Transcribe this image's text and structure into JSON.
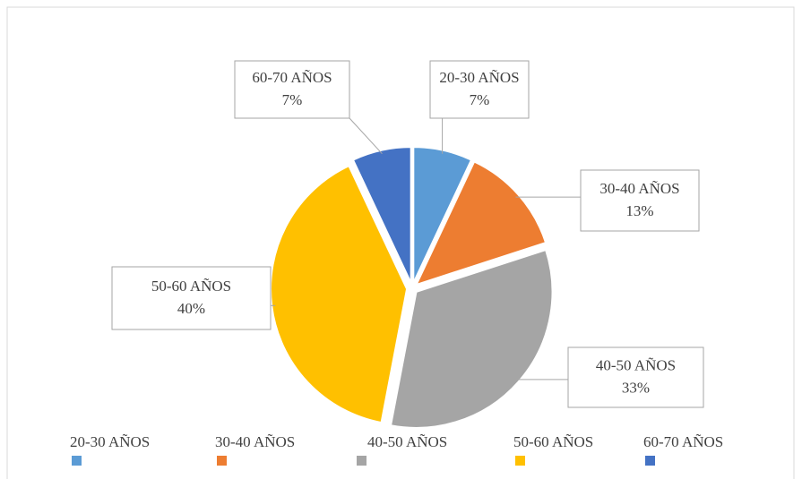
{
  "chart_data": {
    "type": "pie",
    "categories": [
      "20-30 AÑOS",
      "30-40 AÑOS",
      "40-50 AÑOS",
      "50-60 AÑOS",
      "60-70 AÑOS"
    ],
    "values": [
      7,
      13,
      33,
      40,
      7
    ],
    "value_labels": [
      "7%",
      "13%",
      "33%",
      "40%",
      "7%"
    ],
    "colors": [
      "#5b9bd5",
      "#ed7d31",
      "#a5a5a5",
      "#ffc000",
      "#4472c4"
    ],
    "legend": "bottom"
  }
}
